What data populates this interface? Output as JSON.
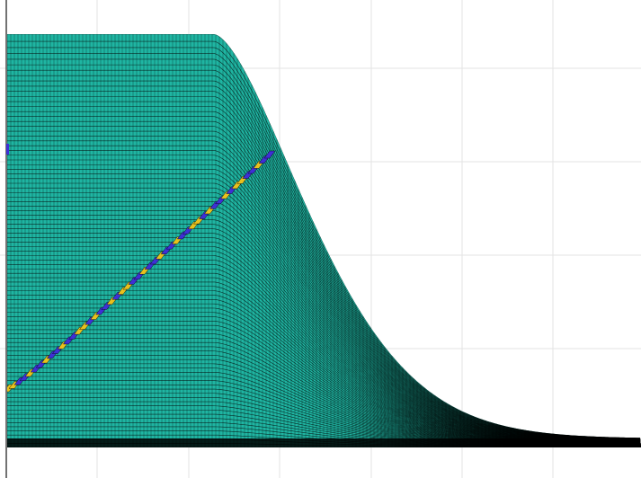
{
  "chart_data": {
    "type": "surface",
    "title": "",
    "xlabel": "",
    "ylabel": "",
    "grid": true,
    "legend": "none",
    "colormap": "parula",
    "colors": {
      "surface": "#1fb5a2",
      "surface_dark": "#000000",
      "mesh_edges": "#000000",
      "feature_blue": "#3f2fd6",
      "feature_yellow": "#e8c11e",
      "grid": "#e3e3e3",
      "axis": "#444444"
    },
    "description_values": {
      "plateau_x_end": 0.34,
      "tail_x_end": 1.0,
      "ridge_start": [
        0.0,
        0.16
      ],
      "ridge_end": [
        0.43,
        0.7
      ]
    }
  }
}
